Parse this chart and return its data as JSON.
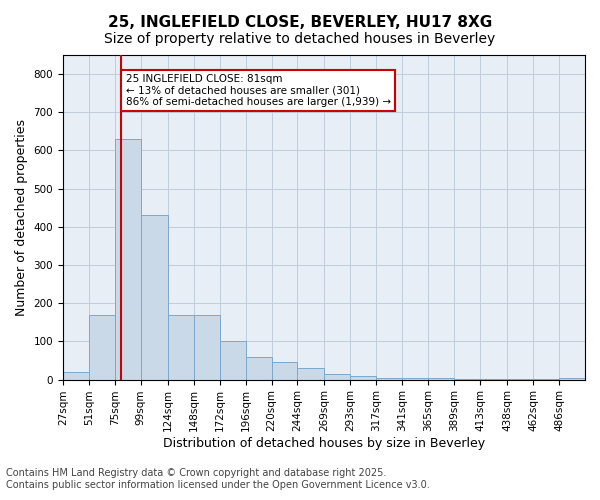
{
  "title_line1": "25, INGLEFIELD CLOSE, BEVERLEY, HU17 8XG",
  "title_line2": "Size of property relative to detached houses in Beverley",
  "xlabel": "Distribution of detached houses by size in Beverley",
  "ylabel": "Number of detached properties",
  "bar_edges": [
    27,
    51,
    75,
    99,
    124,
    148,
    172,
    196,
    220,
    244,
    269,
    293,
    317,
    341,
    365,
    389,
    413,
    438,
    462,
    486,
    510
  ],
  "bar_heights": [
    20,
    170,
    630,
    430,
    170,
    170,
    100,
    60,
    45,
    30,
    15,
    10,
    5,
    5,
    3,
    2,
    2,
    1,
    1,
    5
  ],
  "bar_color": "#c9d9e8",
  "bar_edge_color": "#7aa8cc",
  "property_sqm": 81,
  "property_line_color": "#cc0000",
  "annotation_text": "25 INGLEFIELD CLOSE: 81sqm\n← 13% of detached houses are smaller (301)\n86% of semi-detached houses are larger (1,939) →",
  "annotation_box_color": "#cc0000",
  "annotation_text_color": "#000000",
  "ylim": [
    0,
    850
  ],
  "yticks": [
    0,
    100,
    200,
    300,
    400,
    500,
    600,
    700,
    800
  ],
  "grid_color": "#c0ccdd",
  "background_color": "#e8eef5",
  "footer_line1": "Contains HM Land Registry data © Crown copyright and database right 2025.",
  "footer_line2": "Contains public sector information licensed under the Open Government Licence v3.0.",
  "title_fontsize": 11,
  "subtitle_fontsize": 10,
  "axis_label_fontsize": 9,
  "tick_fontsize": 7.5,
  "footer_fontsize": 7
}
